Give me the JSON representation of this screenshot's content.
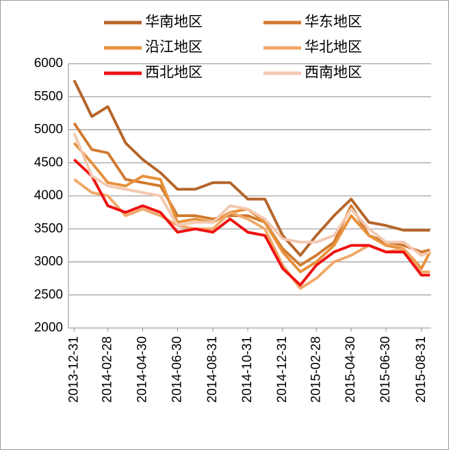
{
  "chart_data": {
    "type": "line",
    "x": [
      "2013-12-31",
      "2014-01-31",
      "2014-02-28",
      "2014-03-31",
      "2014-04-30",
      "2014-05-31",
      "2014-06-30",
      "2014-07-31",
      "2014-08-31",
      "2014-09-30",
      "2014-10-31",
      "2014-11-30",
      "2014-12-31",
      "2015-01-31",
      "2015-02-28",
      "2015-03-31",
      "2015-04-30",
      "2015-05-31",
      "2015-06-30",
      "2015-07-31",
      "2015-08-31",
      "2015-09-15"
    ],
    "series": [
      {
        "name": "华南地区",
        "color": "#b5652a",
        "values": [
          5750,
          5200,
          5350,
          4800,
          4550,
          4350,
          4100,
          4100,
          4200,
          4200,
          3950,
          3950,
          3400,
          3100,
          3400,
          3700,
          3950,
          3600,
          3550,
          3480,
          3480,
          3480
        ]
      },
      {
        "name": "华东地区",
        "color": "#d07a30",
        "values": [
          5100,
          4700,
          4650,
          4250,
          4200,
          4150,
          3700,
          3700,
          3650,
          3700,
          3700,
          3600,
          3200,
          2950,
          3100,
          3300,
          3850,
          3400,
          3300,
          3250,
          3150,
          3180
        ]
      },
      {
        "name": "沿江地区",
        "color": "#e8913c",
        "values": [
          4800,
          4500,
          4200,
          4150,
          4300,
          4250,
          3600,
          3650,
          3600,
          3750,
          3800,
          3600,
          3150,
          2850,
          3000,
          3250,
          3700,
          3400,
          3250,
          3200,
          2900,
          3150
        ]
      },
      {
        "name": "华北地区",
        "color": "#f0a868",
        "values": [
          4250,
          4050,
          4000,
          3700,
          3800,
          3700,
          3550,
          3500,
          3500,
          3750,
          3650,
          3500,
          2950,
          2600,
          2750,
          3000,
          3100,
          3250,
          3150,
          3200,
          2850,
          2850
        ]
      },
      {
        "name": "西北地区",
        "color": "#ee1111",
        "values": [
          4550,
          4300,
          3850,
          3750,
          3850,
          3750,
          3450,
          3500,
          3450,
          3650,
          3450,
          3400,
          2900,
          2650,
          2950,
          3150,
          3250,
          3250,
          3150,
          3150,
          2800,
          2800
        ]
      },
      {
        "name": "西南地区",
        "color": "#f4c8b0",
        "values": [
          4950,
          4300,
          4150,
          4100,
          4050,
          4000,
          3550,
          3600,
          3600,
          3850,
          3800,
          3650,
          3350,
          3300,
          3300,
          3400,
          3800,
          3500,
          3300,
          3300,
          3100,
          3150
        ]
      }
    ],
    "xlim": [
      "2013-12-21",
      "2015-09-17"
    ],
    "xticks": [
      "2013-12-31",
      "2014-02-28",
      "2014-04-30",
      "2014-06-30",
      "2014-08-31",
      "2014-10-31",
      "2014-12-31",
      "2015-02-28",
      "2015-04-30",
      "2015-06-30",
      "2015-08-31"
    ],
    "ylim": [
      2000,
      6000
    ],
    "yticks": [
      2000,
      2500,
      3000,
      3500,
      4000,
      4500,
      5000,
      5500,
      6000
    ],
    "grid": true
  }
}
